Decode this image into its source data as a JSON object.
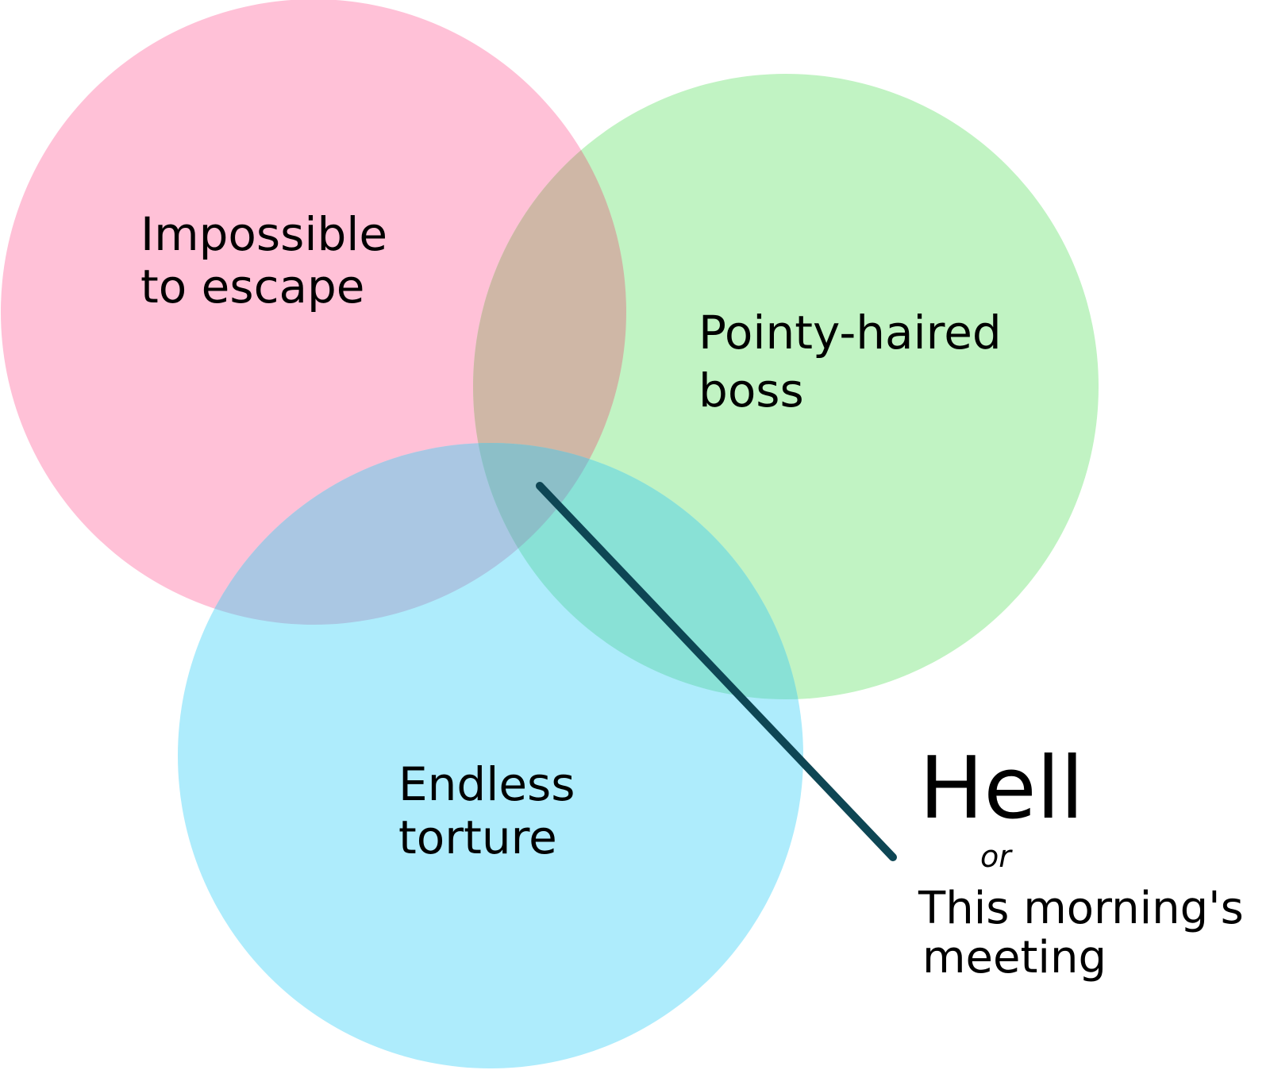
{
  "diagram": {
    "type": "venn",
    "sets": [
      {
        "id": "escape",
        "lines": [
          "Impossible",
          "to escape"
        ],
        "color": "#ffc1d7"
      },
      {
        "id": "boss",
        "lines": [
          "Pointy-haired",
          "boss"
        ],
        "color": "#c1f3c3"
      },
      {
        "id": "torture",
        "lines": [
          "Endless",
          "torture"
        ],
        "color": "#aeecfc"
      }
    ],
    "overlap_colors": {
      "escape_boss": "#cfb7a6",
      "escape_torture": "#aac7e3",
      "boss_torture": "#89e1d6",
      "center": "#8cbfc8"
    },
    "pointer_color": "#0e4654",
    "callout": {
      "title": "Hell",
      "connector": "or",
      "alternative": [
        "This morning's",
        "meeting"
      ]
    }
  }
}
